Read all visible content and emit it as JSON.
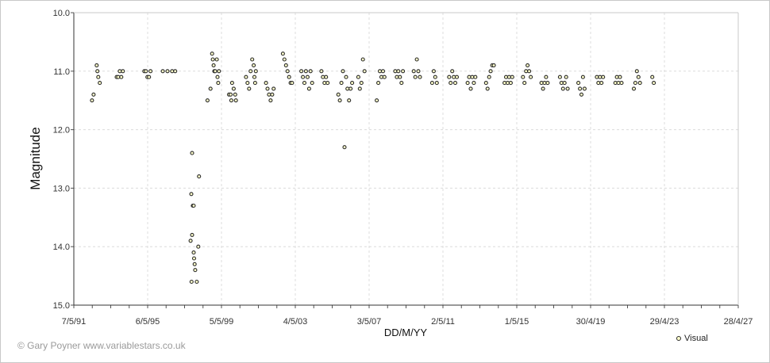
{
  "chart_data": {
    "type": "scatter",
    "title": "",
    "xlabel": "DD/M/YY",
    "ylabel": "Magnitude",
    "x_ticks": [
      "7/5/91",
      "6/5/95",
      "5/5/99",
      "4/5/03",
      "3/5/07",
      "2/5/11",
      "1/5/15",
      "30/4/19",
      "29/4/23",
      "28/4/27"
    ],
    "y_ticks": [
      "10.0",
      "11.0",
      "12.0",
      "13.0",
      "14.0",
      "15.0"
    ],
    "ylim": [
      15.0,
      10.0
    ],
    "y_inverted": true,
    "grid": true,
    "legend_position": "bottom-right",
    "marker_fill": "#ffffcc",
    "marker_edge": "#2b2b2b",
    "series": [
      {
        "name": "Visual",
        "points": [
          [
            "1992-05-01",
            11.5
          ],
          [
            "1992-06-01",
            11.4
          ],
          [
            "1992-08-01",
            10.9
          ],
          [
            "1992-08-15",
            11.0
          ],
          [
            "1992-09-01",
            11.1
          ],
          [
            "1992-10-01",
            11.2
          ],
          [
            "1993-09-01",
            11.1
          ],
          [
            "1993-10-01",
            11.1
          ],
          [
            "1993-11-01",
            11.0
          ],
          [
            "1993-12-01",
            11.1
          ],
          [
            "1994-01-01",
            11.0
          ],
          [
            "1995-03-01",
            11.0
          ],
          [
            "1995-04-01",
            11.0
          ],
          [
            "1995-05-01",
            11.1
          ],
          [
            "1995-06-01",
            11.1
          ],
          [
            "1995-07-01",
            11.0
          ],
          [
            "1996-03-01",
            11.0
          ],
          [
            "1996-06-01",
            11.0
          ],
          [
            "1996-09-01",
            11.0
          ],
          [
            "1996-11-01",
            11.0
          ],
          [
            "1997-10-01",
            12.4
          ],
          [
            "1997-09-15",
            13.1
          ],
          [
            "1997-10-15",
            13.3
          ],
          [
            "1997-11-01",
            13.3
          ],
          [
            "1997-09-01",
            13.9
          ],
          [
            "1997-10-01",
            13.8
          ],
          [
            "1997-11-01",
            14.1
          ],
          [
            "1997-11-10",
            14.2
          ],
          [
            "1997-11-20",
            14.3
          ],
          [
            "1997-12-01",
            14.4
          ],
          [
            "1997-09-20",
            14.6
          ],
          [
            "1998-01-01",
            14.6
          ],
          [
            "1998-02-01",
            14.0
          ],
          [
            "1998-02-15",
            12.8
          ],
          [
            "1998-08-01",
            11.5
          ],
          [
            "1998-10-01",
            11.3
          ],
          [
            "1998-11-01",
            10.7
          ],
          [
            "1998-11-15",
            10.8
          ],
          [
            "1998-12-01",
            10.9
          ],
          [
            "1998-12-15",
            11.0
          ],
          [
            "1999-01-01",
            11.0
          ],
          [
            "1999-02-01",
            10.8
          ],
          [
            "1999-02-15",
            11.1
          ],
          [
            "1999-03-01",
            11.2
          ],
          [
            "1999-03-15",
            11.0
          ],
          [
            "1999-10-01",
            11.4
          ],
          [
            "1999-11-01",
            11.4
          ],
          [
            "1999-11-15",
            11.5
          ],
          [
            "1999-12-01",
            11.2
          ],
          [
            "2000-01-01",
            11.3
          ],
          [
            "2000-02-01",
            11.4
          ],
          [
            "2000-02-15",
            11.5
          ],
          [
            "2000-09-01",
            11.1
          ],
          [
            "2000-10-01",
            11.2
          ],
          [
            "2000-11-01",
            11.3
          ],
          [
            "2000-12-01",
            11.0
          ],
          [
            "2001-01-01",
            10.8
          ],
          [
            "2001-02-01",
            10.9
          ],
          [
            "2001-02-15",
            11.1
          ],
          [
            "2001-03-01",
            11.2
          ],
          [
            "2001-03-15",
            11.0
          ],
          [
            "2001-10-01",
            11.2
          ],
          [
            "2001-11-01",
            11.3
          ],
          [
            "2001-12-01",
            11.4
          ],
          [
            "2002-01-01",
            11.5
          ],
          [
            "2002-02-01",
            11.4
          ],
          [
            "2002-03-01",
            11.3
          ],
          [
            "2002-09-01",
            10.7
          ],
          [
            "2002-10-01",
            10.8
          ],
          [
            "2002-11-01",
            10.9
          ],
          [
            "2002-12-01",
            11.0
          ],
          [
            "2003-01-01",
            11.1
          ],
          [
            "2003-02-01",
            11.2
          ],
          [
            "2003-03-01",
            11.2
          ],
          [
            "2003-09-01",
            11.0
          ],
          [
            "2003-10-01",
            11.1
          ],
          [
            "2003-11-01",
            11.2
          ],
          [
            "2003-12-01",
            11.0
          ],
          [
            "2004-01-01",
            11.1
          ],
          [
            "2004-02-01",
            11.3
          ],
          [
            "2004-03-01",
            11.0
          ],
          [
            "2004-04-01",
            11.2
          ],
          [
            "2004-10-01",
            11.0
          ],
          [
            "2004-11-01",
            11.1
          ],
          [
            "2004-12-01",
            11.2
          ],
          [
            "2005-01-01",
            11.1
          ],
          [
            "2005-02-01",
            11.2
          ],
          [
            "2005-09-01",
            11.4
          ],
          [
            "2005-10-01",
            11.5
          ],
          [
            "2005-11-01",
            11.2
          ],
          [
            "2005-12-01",
            11.0
          ],
          [
            "2006-01-01",
            12.3
          ],
          [
            "2006-02-01",
            11.1
          ],
          [
            "2006-03-01",
            11.3
          ],
          [
            "2006-04-01",
            11.5
          ],
          [
            "2006-05-01",
            11.3
          ],
          [
            "2006-06-01",
            11.2
          ],
          [
            "2006-10-01",
            11.1
          ],
          [
            "2006-11-01",
            11.3
          ],
          [
            "2006-12-01",
            11.2
          ],
          [
            "2007-01-01",
            10.8
          ],
          [
            "2007-02-01",
            11.0
          ],
          [
            "2007-10-01",
            11.5
          ],
          [
            "2007-11-01",
            11.2
          ],
          [
            "2007-12-01",
            11.0
          ],
          [
            "2008-01-01",
            11.1
          ],
          [
            "2008-02-01",
            11.0
          ],
          [
            "2008-03-01",
            11.1
          ],
          [
            "2008-10-01",
            11.0
          ],
          [
            "2008-11-01",
            11.1
          ],
          [
            "2008-12-01",
            11.0
          ],
          [
            "2009-01-01",
            11.1
          ],
          [
            "2009-02-01",
            11.2
          ],
          [
            "2009-03-01",
            11.0
          ],
          [
            "2009-10-01",
            11.0
          ],
          [
            "2009-11-01",
            11.1
          ],
          [
            "2009-12-01",
            10.8
          ],
          [
            "2010-01-01",
            11.0
          ],
          [
            "2010-02-01",
            11.1
          ],
          [
            "2010-10-01",
            11.2
          ],
          [
            "2010-11-01",
            11.0
          ],
          [
            "2010-12-01",
            11.1
          ],
          [
            "2011-01-01",
            11.2
          ],
          [
            "2011-09-01",
            11.1
          ],
          [
            "2011-10-01",
            11.2
          ],
          [
            "2011-11-01",
            11.0
          ],
          [
            "2011-12-01",
            11.1
          ],
          [
            "2012-01-01",
            11.2
          ],
          [
            "2012-02-01",
            11.1
          ],
          [
            "2012-09-01",
            11.2
          ],
          [
            "2012-10-01",
            11.1
          ],
          [
            "2012-11-01",
            11.3
          ],
          [
            "2012-12-01",
            11.1
          ],
          [
            "2013-01-01",
            11.2
          ],
          [
            "2013-02-01",
            11.1
          ],
          [
            "2013-09-01",
            11.2
          ],
          [
            "2013-10-01",
            11.3
          ],
          [
            "2013-11-01",
            11.1
          ],
          [
            "2013-12-01",
            11.0
          ],
          [
            "2014-01-01",
            10.9
          ],
          [
            "2014-02-01",
            10.9
          ],
          [
            "2014-09-01",
            11.2
          ],
          [
            "2014-10-01",
            11.1
          ],
          [
            "2014-11-01",
            11.2
          ],
          [
            "2014-12-01",
            11.1
          ],
          [
            "2015-01-01",
            11.2
          ],
          [
            "2015-02-01",
            11.1
          ],
          [
            "2015-09-01",
            11.1
          ],
          [
            "2015-10-01",
            11.2
          ],
          [
            "2015-11-01",
            11.0
          ],
          [
            "2015-12-01",
            10.9
          ],
          [
            "2016-01-01",
            11.0
          ],
          [
            "2016-02-01",
            11.1
          ],
          [
            "2016-09-01",
            11.2
          ],
          [
            "2016-10-01",
            11.3
          ],
          [
            "2016-11-01",
            11.2
          ],
          [
            "2016-12-01",
            11.1
          ],
          [
            "2017-01-01",
            11.2
          ],
          [
            "2017-09-01",
            11.1
          ],
          [
            "2017-10-01",
            11.2
          ],
          [
            "2017-11-01",
            11.3
          ],
          [
            "2017-12-01",
            11.2
          ],
          [
            "2018-01-01",
            11.1
          ],
          [
            "2018-02-01",
            11.3
          ],
          [
            "2018-09-01",
            11.2
          ],
          [
            "2018-10-01",
            11.3
          ],
          [
            "2018-11-01",
            11.4
          ],
          [
            "2018-12-01",
            11.1
          ],
          [
            "2019-01-01",
            11.3
          ],
          [
            "2019-09-01",
            11.1
          ],
          [
            "2019-10-01",
            11.2
          ],
          [
            "2019-11-01",
            11.1
          ],
          [
            "2019-12-01",
            11.2
          ],
          [
            "2020-01-01",
            11.1
          ],
          [
            "2020-09-01",
            11.2
          ],
          [
            "2020-10-01",
            11.1
          ],
          [
            "2020-11-01",
            11.2
          ],
          [
            "2020-12-01",
            11.1
          ],
          [
            "2021-01-01",
            11.2
          ],
          [
            "2021-09-01",
            11.3
          ],
          [
            "2021-10-01",
            11.2
          ],
          [
            "2021-11-01",
            11.0
          ],
          [
            "2021-12-01",
            11.1
          ],
          [
            "2022-01-01",
            11.2
          ],
          [
            "2022-09-01",
            11.1
          ],
          [
            "2022-10-01",
            11.2
          ]
        ]
      }
    ]
  },
  "credit": "© Gary Poyner  www.variablestars.co.uk"
}
